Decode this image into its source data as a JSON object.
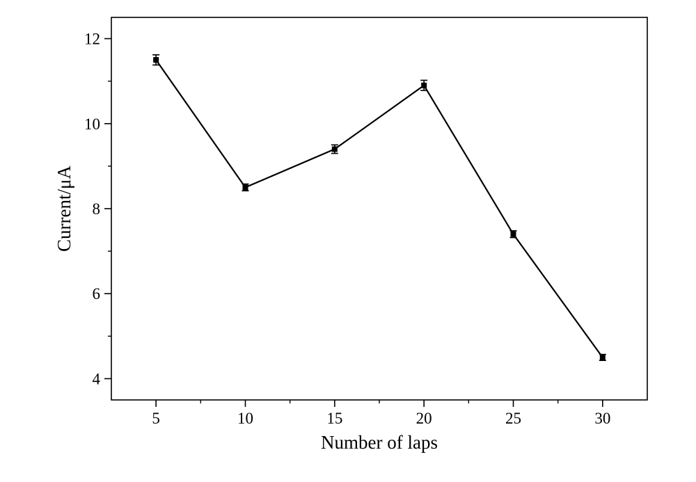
{
  "chart_data": {
    "type": "line",
    "x_label": "Number of laps",
    "y_label": "Current/μA",
    "x": [
      5,
      10,
      15,
      20,
      25,
      30
    ],
    "series": [
      {
        "color": "#000000",
        "values": [
          11.5,
          8.5,
          9.4,
          10.9,
          7.4,
          4.5
        ],
        "errors": [
          0.12,
          0.08,
          0.1,
          0.12,
          0.08,
          0.07
        ]
      }
    ],
    "xlim": [
      2.5,
      32.5
    ],
    "ylim": [
      3.5,
      12.5
    ],
    "xticks": [
      5,
      10,
      15,
      20,
      25,
      30
    ],
    "yticks": [
      4,
      6,
      8,
      10,
      12
    ],
    "xminorticks": [
      7.5,
      12.5,
      17.5,
      22.5,
      27.5
    ],
    "yminorticks": [
      5,
      7,
      9,
      11
    ],
    "grid": false
  }
}
